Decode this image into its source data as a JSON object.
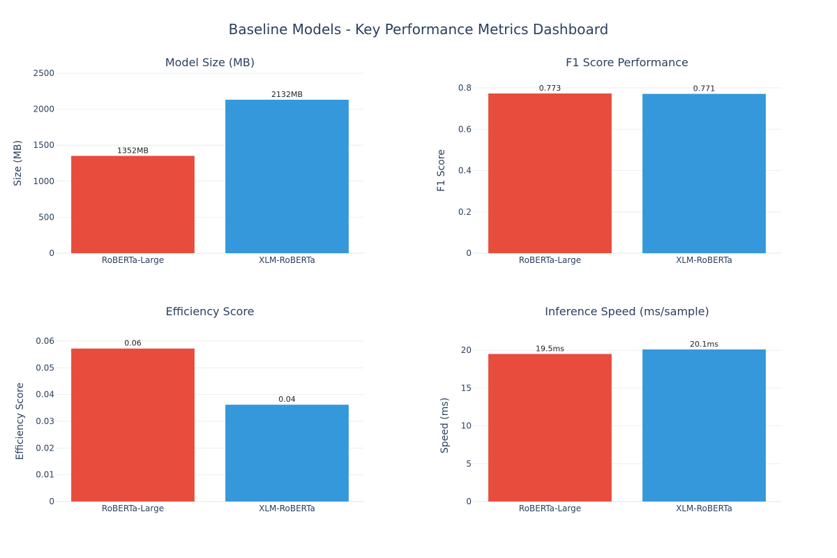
{
  "title": "Baseline Models - Key Performance Metrics Dashboard",
  "colors": {
    "RoBERTa-Large": "#e74c3c",
    "XLM-RoBERTa": "#3498db"
  },
  "chart_data": [
    {
      "type": "bar",
      "title": "Model Size (MB)",
      "ylabel": "Size (MB)",
      "categories": [
        "RoBERTa-Large",
        "XLM-RoBERTa"
      ],
      "values": [
        1352,
        2132
      ],
      "labels": [
        "1352MB",
        "2132MB"
      ],
      "ylim": [
        0,
        2500
      ],
      "yticks": [
        0,
        500,
        1000,
        1500,
        2000,
        2500
      ],
      "ytick_labels": [
        "0",
        "500",
        "1000",
        "1500",
        "2000",
        "2500"
      ],
      "grid": true
    },
    {
      "type": "bar",
      "title": "F1 Score Performance",
      "ylabel": "F1 Score",
      "categories": [
        "RoBERTa-Large",
        "XLM-RoBERTa"
      ],
      "values": [
        0.773,
        0.771
      ],
      "labels": [
        "0.773",
        "0.771"
      ],
      "ylim": [
        0,
        0.8
      ],
      "yticks": [
        0,
        0.2,
        0.4,
        0.6,
        0.8
      ],
      "ytick_labels": [
        "0",
        "0.2",
        "0.4",
        "0.6",
        "0.8"
      ],
      "grid": true
    },
    {
      "type": "bar",
      "title": "Efficiency Score",
      "ylabel": "Efficiency Score",
      "categories": [
        "RoBERTa-Large",
        "XLM-RoBERTa"
      ],
      "values": [
        0.0572,
        0.0362
      ],
      "labels": [
        "0.06",
        "0.04"
      ],
      "ylim": [
        0,
        0.06
      ],
      "yticks": [
        0,
        0.01,
        0.02,
        0.03,
        0.04,
        0.05,
        0.06
      ],
      "ytick_labels": [
        "0",
        "0.01",
        "0.02",
        "0.03",
        "0.04",
        "0.05",
        "0.06"
      ],
      "grid": true
    },
    {
      "type": "bar",
      "title": "Inference Speed (ms/sample)",
      "ylabel": "Speed (ms)",
      "categories": [
        "RoBERTa-Large",
        "XLM-RoBERTa"
      ],
      "values": [
        19.5,
        20.1
      ],
      "labels": [
        "19.5ms",
        "20.1ms"
      ],
      "ylim": [
        0,
        20.1
      ],
      "yticks": [
        0,
        5,
        10,
        15,
        20
      ],
      "ytick_labels": [
        "0",
        "5",
        "10",
        "15",
        "20"
      ],
      "grid": true
    }
  ]
}
